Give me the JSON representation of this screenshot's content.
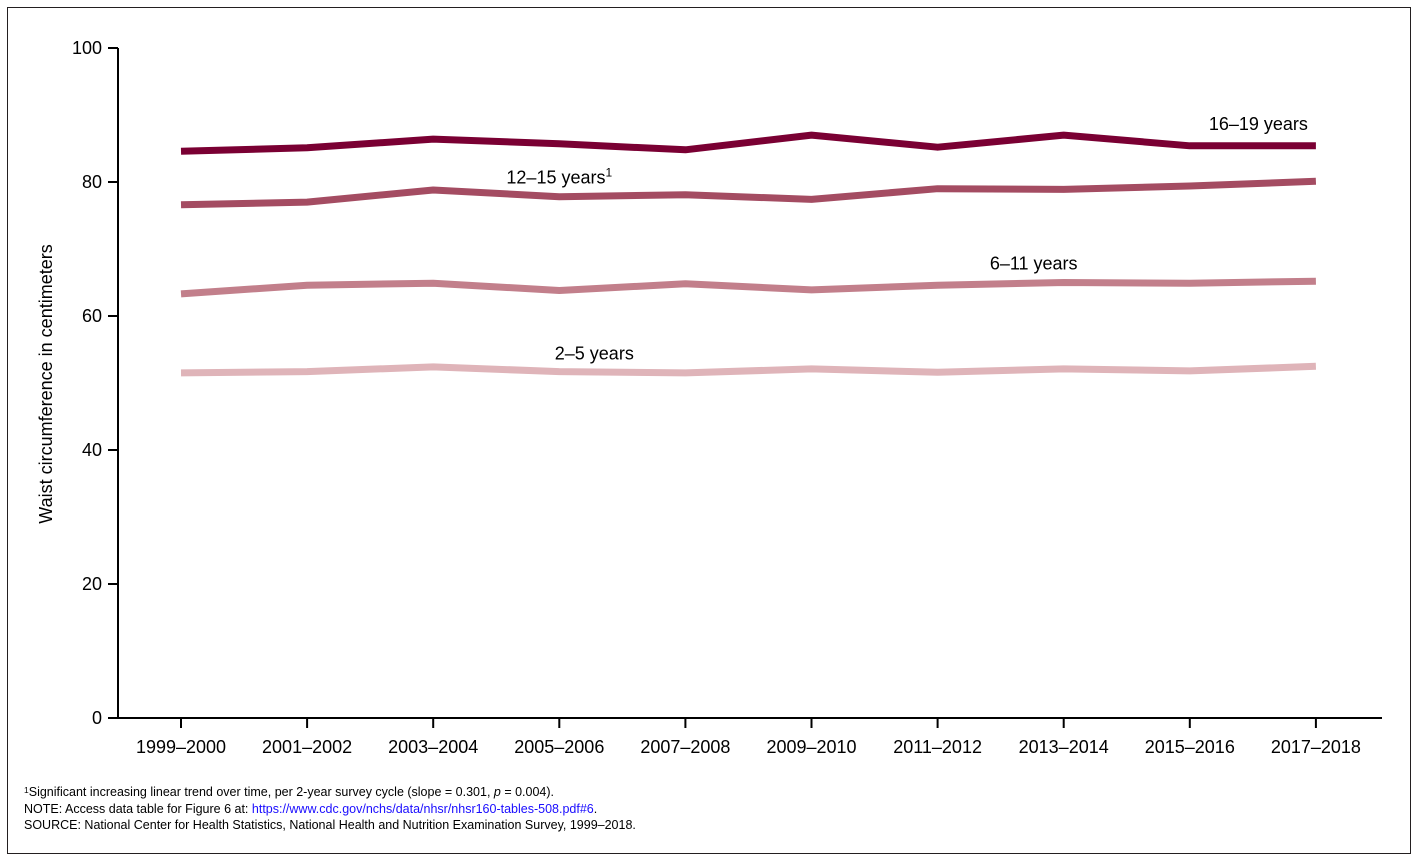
{
  "chart_data": {
    "type": "line",
    "title": "",
    "xlabel": "",
    "ylabel": "Waist circumference in centimeters",
    "ylim": [
      0,
      100
    ],
    "yticks": [
      0,
      20,
      40,
      60,
      80,
      100
    ],
    "categories": [
      "1999–2000",
      "2001–2002",
      "2003–2004",
      "2005–2006",
      "2007–2008",
      "2009–2010",
      "2011–2012",
      "2013–2014",
      "2015–2016",
      "2017–2018"
    ],
    "grid": false,
    "legend": "inline labels",
    "series": [
      {
        "name": "16–19 years",
        "footnote": "",
        "color": "#7a0033",
        "values": [
          84.6,
          85.1,
          86.4,
          85.7,
          84.8,
          87.0,
          85.2,
          87.0,
          85.4,
          85.4
        ]
      },
      {
        "name": "12–15 years",
        "footnote": "1",
        "color": "#a44c62",
        "values": [
          76.6,
          77.0,
          78.8,
          77.8,
          78.1,
          77.4,
          79.0,
          78.9,
          79.4,
          80.1
        ]
      },
      {
        "name": "6–11 years",
        "footnote": "",
        "color": "#c27f8b",
        "values": [
          63.3,
          64.6,
          64.9,
          63.8,
          64.8,
          63.9,
          64.6,
          65.0,
          64.9,
          65.2
        ]
      },
      {
        "name": "2–5 years",
        "footnote": "",
        "color": "#dfb4b9",
        "values": [
          51.5,
          51.7,
          52.4,
          51.7,
          51.5,
          52.1,
          51.6,
          52.1,
          51.8,
          52.5
        ]
      }
    ]
  },
  "notes": {
    "footnote_marker": "1",
    "footnote_text": "Significant increasing linear trend over time, per 2-year survey cycle (slope = 0.301, ",
    "footnote_p": "p",
    "footnote_tail": " = 0.004).",
    "note_prefix": "NOTE: Access data table for Figure 6 at: ",
    "note_link": "https://www.cdc.gov/nchs/data/nhsr/nhsr160-tables-508.pdf#6",
    "note_suffix": ".",
    "source": "SOURCE: National Center for Health Statistics, National Health and Nutrition Examination Survey, 1999–2018."
  }
}
